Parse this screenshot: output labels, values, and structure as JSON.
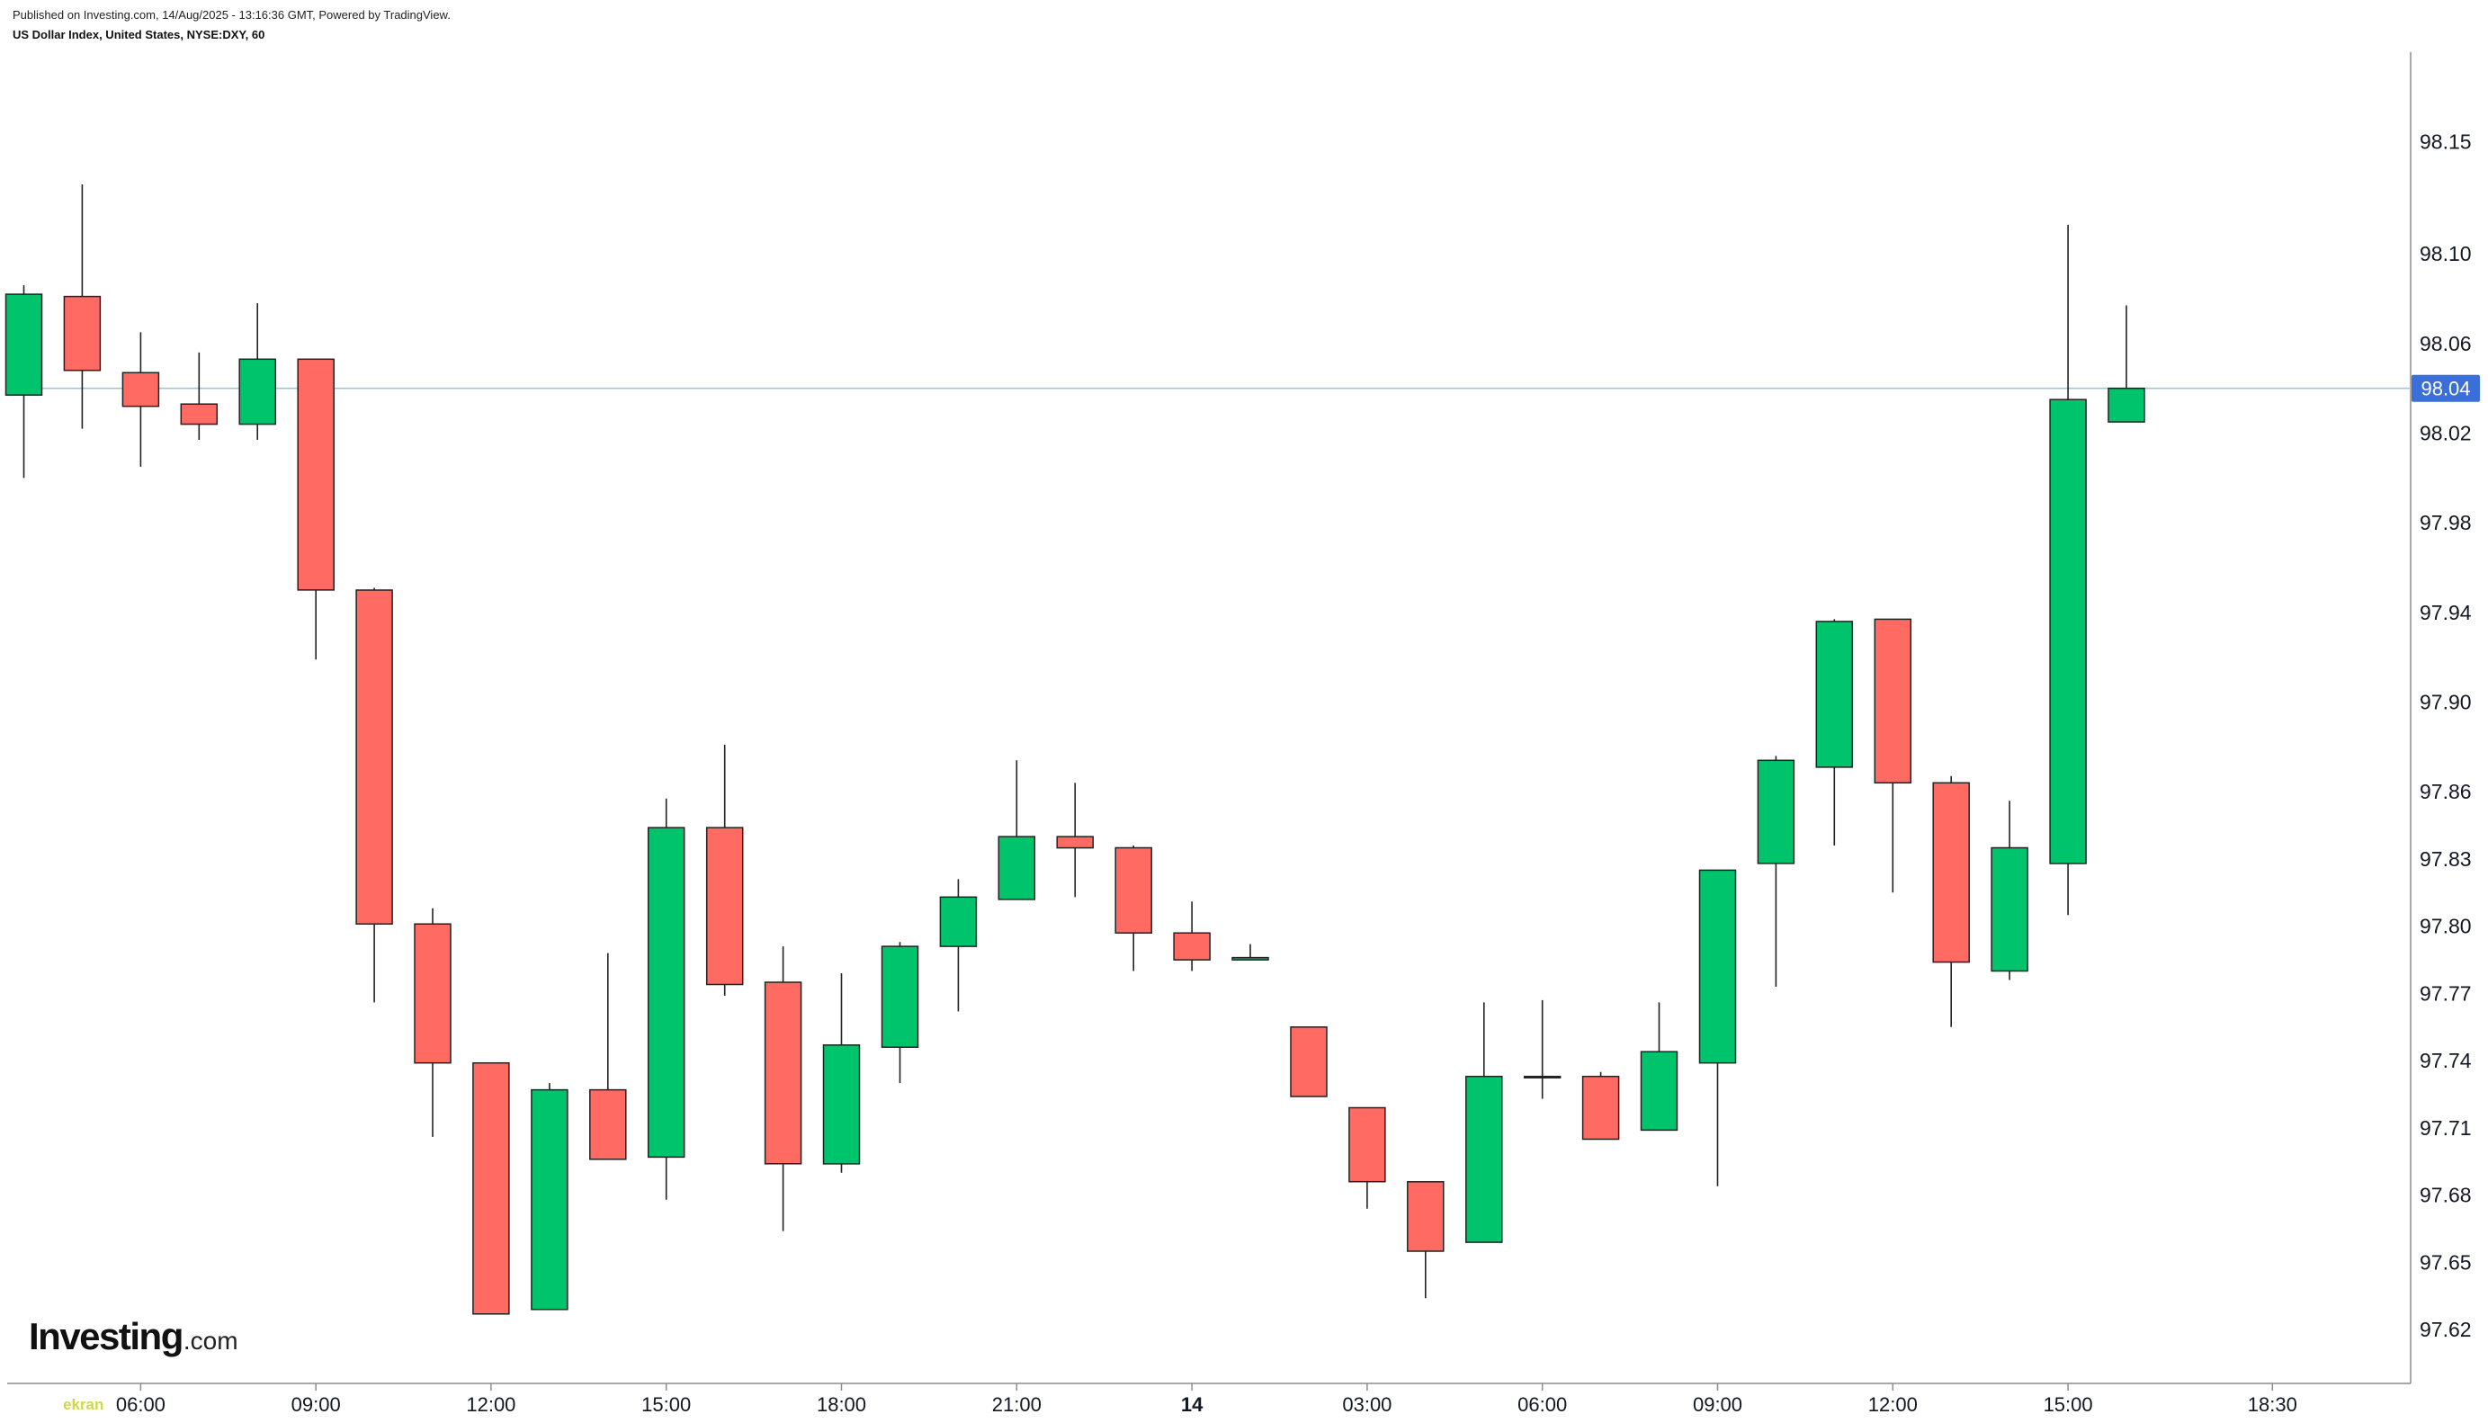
{
  "header": {
    "published": "Published on Investing.com, 14/Aug/2025 - 13:16:36 GMT, Powered by TradingView."
  },
  "logo": {
    "brand": "Investing",
    "suffix": ".com"
  },
  "watermark": {
    "text": "ekran"
  },
  "colors": {
    "up": "#00C46B",
    "down": "#FF6A63",
    "outline": "#222222",
    "price_line": "#9FC3DA",
    "price_label": "#3A6FD8",
    "axis": "#8C8C8C",
    "text": "#131722"
  },
  "last_price": {
    "value": 98.04,
    "label": "98.04"
  },
  "chart_data": {
    "type": "candlestick",
    "title": "US Dollar Index, United States, NYSE:DXY, 60",
    "ylim": [
      97.596,
      98.19
    ],
    "y_scale": "linear",
    "grid": false,
    "legend": "none",
    "y_ticks": [
      "98.15",
      "98.10",
      "98.06",
      "98.02",
      "97.98",
      "97.94",
      "97.90",
      "97.86",
      "97.83",
      "97.80",
      "97.77",
      "97.74",
      "97.71",
      "97.68",
      "97.65",
      "97.62"
    ],
    "x_ticks": [
      {
        "label": "06:00",
        "t": "2025-08-13 06:00"
      },
      {
        "label": "09:00",
        "t": "2025-08-13 09:00"
      },
      {
        "label": "12:00",
        "t": "2025-08-13 12:00"
      },
      {
        "label": "15:00",
        "t": "2025-08-13 15:00"
      },
      {
        "label": "18:00",
        "t": "2025-08-13 18:00"
      },
      {
        "label": "21:00",
        "t": "2025-08-13 21:00"
      },
      {
        "label": "14",
        "t": "2025-08-14 00:00"
      },
      {
        "label": "03:00",
        "t": "2025-08-14 03:00"
      },
      {
        "label": "06:00",
        "t": "2025-08-14 06:00"
      },
      {
        "label": "09:00",
        "t": "2025-08-14 09:00"
      },
      {
        "label": "12:00",
        "t": "2025-08-14 12:00"
      },
      {
        "label": "15:00",
        "t": "2025-08-14 15:00"
      },
      {
        "label": "18:30",
        "t": "2025-08-14 18:30"
      }
    ],
    "ohlc": [
      {
        "t": "2025-08-13 04:00",
        "o": 98.037,
        "h": 98.086,
        "l": 98.0,
        "c": 98.082
      },
      {
        "t": "2025-08-13 05:00",
        "o": 98.081,
        "h": 98.131,
        "l": 98.022,
        "c": 98.048
      },
      {
        "t": "2025-08-13 06:00",
        "o": 98.047,
        "h": 98.065,
        "l": 98.005,
        "c": 98.032
      },
      {
        "t": "2025-08-13 07:00",
        "o": 98.033,
        "h": 98.056,
        "l": 98.017,
        "c": 98.024
      },
      {
        "t": "2025-08-13 08:00",
        "o": 98.024,
        "h": 98.078,
        "l": 98.017,
        "c": 98.053
      },
      {
        "t": "2025-08-13 09:00",
        "o": 98.053,
        "h": 98.053,
        "l": 97.919,
        "c": 97.95
      },
      {
        "t": "2025-08-13 10:00",
        "o": 97.95,
        "h": 97.951,
        "l": 97.766,
        "c": 97.801
      },
      {
        "t": "2025-08-13 11:00",
        "o": 97.801,
        "h": 97.808,
        "l": 97.706,
        "c": 97.739
      },
      {
        "t": "2025-08-13 12:00",
        "o": 97.739,
        "h": 97.739,
        "l": 97.627,
        "c": 97.627
      },
      {
        "t": "2025-08-13 13:00",
        "o": 97.629,
        "h": 97.73,
        "l": 97.629,
        "c": 97.727
      },
      {
        "t": "2025-08-13 14:00",
        "o": 97.727,
        "h": 97.788,
        "l": 97.696,
        "c": 97.696
      },
      {
        "t": "2025-08-13 15:00",
        "o": 97.697,
        "h": 97.857,
        "l": 97.678,
        "c": 97.844
      },
      {
        "t": "2025-08-13 16:00",
        "o": 97.844,
        "h": 97.881,
        "l": 97.769,
        "c": 97.774
      },
      {
        "t": "2025-08-13 17:00",
        "o": 97.775,
        "h": 97.791,
        "l": 97.664,
        "c": 97.694
      },
      {
        "t": "2025-08-13 18:00",
        "o": 97.694,
        "h": 97.779,
        "l": 97.69,
        "c": 97.747
      },
      {
        "t": "2025-08-13 19:00",
        "o": 97.746,
        "h": 97.793,
        "l": 97.73,
        "c": 97.791
      },
      {
        "t": "2025-08-13 20:00",
        "o": 97.791,
        "h": 97.821,
        "l": 97.762,
        "c": 97.813
      },
      {
        "t": "2025-08-13 21:00",
        "o": 97.812,
        "h": 97.874,
        "l": 97.812,
        "c": 97.84
      },
      {
        "t": "2025-08-13 22:00",
        "o": 97.84,
        "h": 97.864,
        "l": 97.813,
        "c": 97.835
      },
      {
        "t": "2025-08-13 23:00",
        "o": 97.835,
        "h": 97.836,
        "l": 97.78,
        "c": 97.797
      },
      {
        "t": "2025-08-14 00:00",
        "o": 97.797,
        "h": 97.811,
        "l": 97.78,
        "c": 97.785
      },
      {
        "t": "2025-08-14 01:00",
        "o": 97.785,
        "h": 97.792,
        "l": 97.785,
        "c": 97.786
      },
      {
        "t": "2025-08-14 02:00",
        "o": 97.755,
        "h": 97.755,
        "l": 97.724,
        "c": 97.724
      },
      {
        "t": "2025-08-14 03:00",
        "o": 97.719,
        "h": 97.719,
        "l": 97.674,
        "c": 97.686
      },
      {
        "t": "2025-08-14 04:00",
        "o": 97.686,
        "h": 97.686,
        "l": 97.634,
        "c": 97.655
      },
      {
        "t": "2025-08-14 05:00",
        "o": 97.659,
        "h": 97.766,
        "l": 97.659,
        "c": 97.733
      },
      {
        "t": "2025-08-14 06:00",
        "o": 97.733,
        "h": 97.767,
        "l": 97.723,
        "c": 97.733
      },
      {
        "t": "2025-08-14 07:00",
        "o": 97.733,
        "h": 97.735,
        "l": 97.705,
        "c": 97.705
      },
      {
        "t": "2025-08-14 08:00",
        "o": 97.709,
        "h": 97.766,
        "l": 97.709,
        "c": 97.744
      },
      {
        "t": "2025-08-14 09:00",
        "o": 97.739,
        "h": 97.825,
        "l": 97.684,
        "c": 97.825
      },
      {
        "t": "2025-08-14 10:00",
        "o": 97.828,
        "h": 97.876,
        "l": 97.773,
        "c": 97.874
      },
      {
        "t": "2025-08-14 11:00",
        "o": 97.871,
        "h": 97.937,
        "l": 97.836,
        "c": 97.936
      },
      {
        "t": "2025-08-14 12:00",
        "o": 97.937,
        "h": 97.937,
        "l": 97.815,
        "c": 97.864
      },
      {
        "t": "2025-08-14 13:00",
        "o": 97.864,
        "h": 97.867,
        "l": 97.755,
        "c": 97.784
      },
      {
        "t": "2025-08-14 14:00",
        "o": 97.78,
        "h": 97.856,
        "l": 97.776,
        "c": 97.835
      },
      {
        "t": "2025-08-14 15:00",
        "o": 97.828,
        "h": 98.113,
        "l": 97.805,
        "c": 98.035
      },
      {
        "t": "2025-08-14 16:00",
        "o": 98.025,
        "h": 98.077,
        "l": 98.025,
        "c": 98.04
      }
    ]
  }
}
